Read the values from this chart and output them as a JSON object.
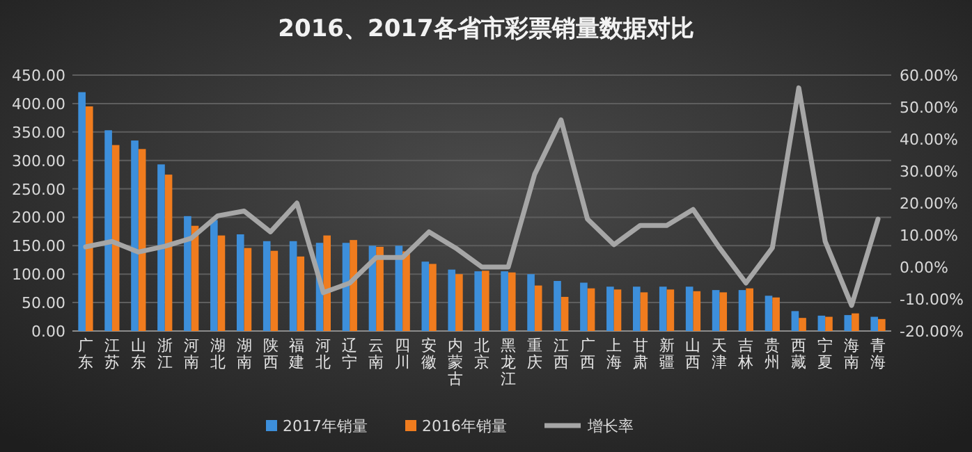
{
  "chart_data": {
    "type": "bar",
    "title": "2016、2017各省市彩票销量数据对比",
    "categories": [
      "广东",
      "江苏",
      "山东",
      "浙江",
      "河南",
      "湖北",
      "湖南",
      "陕西",
      "福建",
      "河北",
      "辽宁",
      "云南",
      "四川",
      "安徽",
      "内蒙古",
      "北京",
      "黑龙江",
      "重庆",
      "江西",
      "广西",
      "上海",
      "甘肃",
      "新疆",
      "山西",
      "天津",
      "吉林",
      "贵州",
      "西藏",
      "宁夏",
      "海南",
      "青海"
    ],
    "series": [
      {
        "name": "2017年销量",
        "color": "#3d8fdb",
        "values": [
          420,
          353,
          335,
          293,
          202,
          195,
          170,
          158,
          158,
          155,
          155,
          150,
          150,
          122,
          108,
          105,
          105,
          100,
          88,
          85,
          78,
          78,
          78,
          78,
          72,
          72,
          62,
          35,
          27,
          28,
          25
        ]
      },
      {
        "name": "2016年销量",
        "color": "#f07c1e",
        "values": [
          395,
          327,
          320,
          275,
          185,
          168,
          146,
          141,
          131,
          168,
          160,
          148,
          140,
          118,
          100,
          106,
          103,
          80,
          60,
          75,
          73,
          68,
          73,
          70,
          68,
          75,
          59,
          23,
          25,
          31,
          21
        ]
      },
      {
        "name": "增长率",
        "type": "line",
        "axis": "y2",
        "color": "#a6a6a6",
        "values": [
          6.3,
          8,
          4.7,
          6.5,
          9,
          16,
          17.5,
          11,
          20,
          -8,
          -5,
          3,
          3,
          11,
          6,
          0,
          0,
          29,
          46,
          15,
          7,
          13,
          13,
          18,
          6,
          -5,
          6,
          56,
          8,
          -12,
          15
        ]
      }
    ],
    "ylim": [
      0,
      450
    ],
    "yticks": [
      {
        "value": 0,
        "label": "0.00"
      },
      {
        "value": 50,
        "label": "50.00"
      },
      {
        "value": 100,
        "label": "100.00"
      },
      {
        "value": 150,
        "label": "150.00"
      },
      {
        "value": 200,
        "label": "200.00"
      },
      {
        "value": 250,
        "label": "250.00"
      },
      {
        "value": 300,
        "label": "300.00"
      },
      {
        "value": 350,
        "label": "350.00"
      },
      {
        "value": 400,
        "label": "400.00"
      },
      {
        "value": 450,
        "label": "450.00"
      }
    ],
    "y2lim": [
      -20,
      60
    ],
    "y2ticks": [
      {
        "value": -20,
        "label": "-20.00%"
      },
      {
        "value": -10,
        "label": "-10.00%"
      },
      {
        "value": 0,
        "label": "0.00%"
      },
      {
        "value": 10,
        "label": "10.00%"
      },
      {
        "value": 20,
        "label": "20.00%"
      },
      {
        "value": 30,
        "label": "30.00%"
      },
      {
        "value": 40,
        "label": "40.00%"
      },
      {
        "value": 50,
        "label": "50.00%"
      },
      {
        "value": 60,
        "label": "60.00%"
      }
    ],
    "grid": "y",
    "legend": "bottom",
    "marker": "none"
  }
}
